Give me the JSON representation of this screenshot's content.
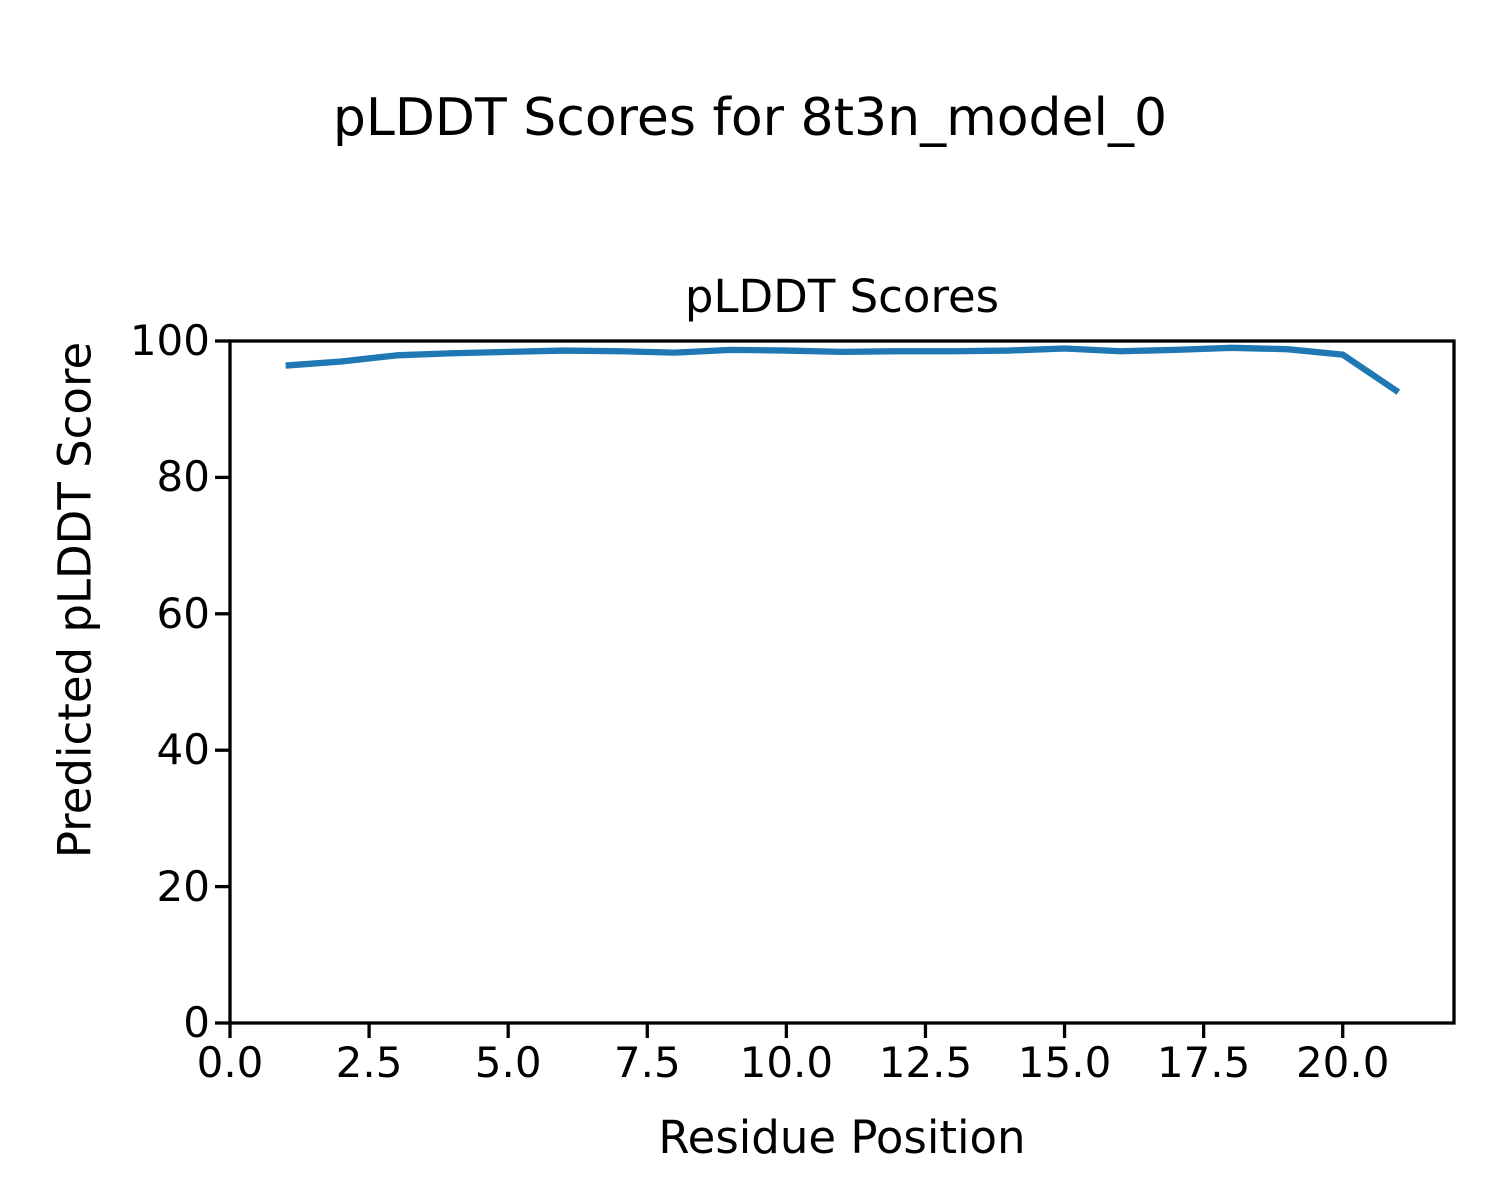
{
  "figure": {
    "suptitle": "pLDDT Scores for 8t3n_model_0"
  },
  "chart_data": {
    "type": "line",
    "title": "pLDDT Scores",
    "xlabel": "Residue Position",
    "ylabel": "Predicted pLDDT Score",
    "x": [
      1,
      2,
      3,
      4,
      5,
      6,
      7,
      8,
      9,
      10,
      11,
      12,
      13,
      14,
      15,
      16,
      17,
      18,
      19,
      20,
      21
    ],
    "values": [
      96.4,
      97.0,
      97.9,
      98.2,
      98.4,
      98.6,
      98.5,
      98.3,
      98.7,
      98.6,
      98.4,
      98.5,
      98.5,
      98.6,
      98.9,
      98.5,
      98.7,
      99.0,
      98.8,
      98.0,
      92.5
    ],
    "xlim": [
      0,
      22
    ],
    "ylim": [
      0,
      100
    ],
    "xticks": [
      0.0,
      2.5,
      5.0,
      7.5,
      10.0,
      12.5,
      15.0,
      17.5,
      20.0
    ],
    "xtick_labels": [
      "0.0",
      "2.5",
      "5.0",
      "7.5",
      "10.0",
      "12.5",
      "15.0",
      "17.5",
      "20.0"
    ],
    "yticks": [
      0,
      20,
      40,
      60,
      80,
      100
    ],
    "ytick_labels": [
      "0",
      "20",
      "40",
      "60",
      "80",
      "100"
    ],
    "grid": false,
    "legend": false,
    "line_color": "#1f77b4",
    "spine_color": "#000000"
  }
}
